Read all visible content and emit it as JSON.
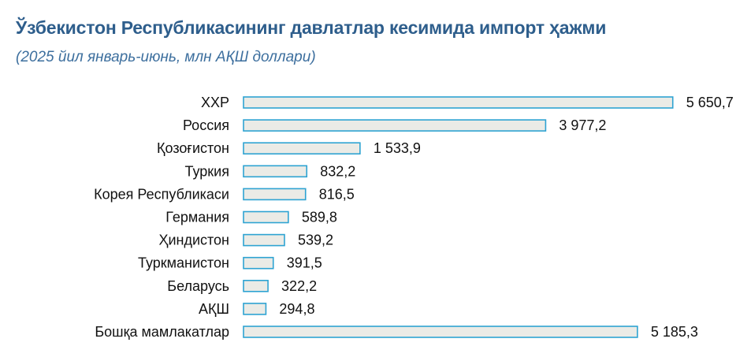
{
  "title": "Ўзбекистон Республикасининг давлатлар кесимида импорт ҳажми",
  "subtitle": "(2025 йил январь-июнь, млн АҚШ доллари)",
  "colors": {
    "title": "#2e5e8c",
    "subtitle": "#3d6f9e",
    "bar_fill": "#ebebe6",
    "bar_stroke": "#2ea3d2",
    "text": "#111111"
  },
  "chart_data": {
    "type": "bar",
    "orientation": "horizontal",
    "title": "Ўзбекистон Республикасининг давлатлар кесимида импорт ҳажми",
    "subtitle": "(2025 йил январь-июнь, млн АҚШ доллари)",
    "categories": [
      "ХХР",
      "Россия",
      "Қозоғистон",
      "Туркия",
      "Корея Республикаси",
      "Германия",
      "Ҳиндистон",
      "Туркманистон",
      "Беларусь",
      "АҚШ",
      "Бошқа мамлакатлар"
    ],
    "values": [
      5650.7,
      3977.2,
      1533.9,
      832.2,
      816.5,
      589.8,
      539.2,
      391.5,
      322.2,
      294.8,
      5185.3
    ],
    "value_labels": [
      "5 650,7",
      "3 977,2",
      "1 533,9",
      "832,2",
      "816,5",
      "589,8",
      "539,2",
      "391,5",
      "322,2",
      "294,8",
      "5 185,3"
    ],
    "xlabel": "",
    "ylabel": "",
    "grid": false,
    "legend": "none"
  }
}
